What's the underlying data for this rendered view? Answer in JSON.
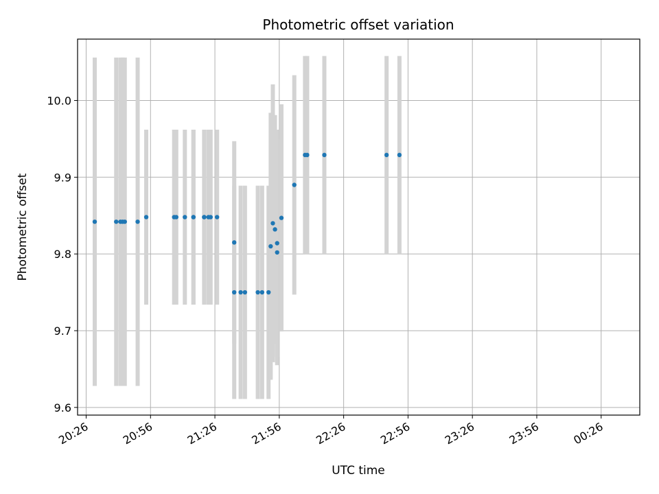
{
  "chart_data": {
    "type": "scatter",
    "title": "Photometric offset variation",
    "xlabel": "UTC time",
    "ylabel": "Photometric offset",
    "x_tick_labels": [
      "20:26",
      "20:56",
      "21:26",
      "21:56",
      "22:26",
      "22:56",
      "23:26",
      "23:56",
      "00:26"
    ],
    "y_tick_labels": [
      "9.6",
      "9.7",
      "9.8",
      "9.9",
      "10.0"
    ],
    "x_ticks": [
      "20:26",
      "20:56",
      "21:26",
      "21:56",
      "22:26",
      "22:56",
      "23:26",
      "23:56",
      "00:26"
    ],
    "y_ticks": [
      9.6,
      9.7,
      9.8,
      9.9,
      10.0
    ],
    "xlim": [
      "20:22",
      "00:44"
    ],
    "ylim": [
      9.59,
      10.08
    ],
    "grid": true,
    "colors": {
      "point": "#1f77b4",
      "errorbar": "#d3d3d3",
      "grid": "#b0b0b0",
      "axes": "#000000"
    },
    "points": [
      {
        "t": "20:30",
        "y": 9.842,
        "yerr": 0.214
      },
      {
        "t": "20:40",
        "y": 9.842,
        "yerr": 0.214
      },
      {
        "t": "20:42",
        "y": 9.842,
        "yerr": 0.214
      },
      {
        "t": "20:43",
        "y": 9.842,
        "yerr": 0.214
      },
      {
        "t": "20:44",
        "y": 9.842,
        "yerr": 0.214
      },
      {
        "t": "20:50",
        "y": 9.842,
        "yerr": 0.214
      },
      {
        "t": "20:54",
        "y": 9.848,
        "yerr": 0.114
      },
      {
        "t": "21:07",
        "y": 9.848,
        "yerr": 0.114
      },
      {
        "t": "21:08",
        "y": 9.848,
        "yerr": 0.114
      },
      {
        "t": "21:12",
        "y": 9.848,
        "yerr": 0.114
      },
      {
        "t": "21:16",
        "y": 9.848,
        "yerr": 0.114
      },
      {
        "t": "21:16",
        "y": 9.848,
        "yerr": 0.114
      },
      {
        "t": "21:21",
        "y": 9.848,
        "yerr": 0.114
      },
      {
        "t": "21:21",
        "y": 9.848,
        "yerr": 0.114
      },
      {
        "t": "21:23",
        "y": 9.848,
        "yerr": 0.114
      },
      {
        "t": "21:24",
        "y": 9.848,
        "yerr": 0.114
      },
      {
        "t": "21:27",
        "y": 9.848,
        "yerr": 0.114
      },
      {
        "t": "21:35",
        "y": 9.815,
        "yerr": 0.132
      },
      {
        "t": "21:35",
        "y": 9.75,
        "yerr": 0.139
      },
      {
        "t": "21:38",
        "y": 9.75,
        "yerr": 0.139
      },
      {
        "t": "21:40",
        "y": 9.75,
        "yerr": 0.139
      },
      {
        "t": "21:46",
        "y": 9.75,
        "yerr": 0.139
      },
      {
        "t": "21:48",
        "y": 9.75,
        "yerr": 0.139
      },
      {
        "t": "21:51",
        "y": 9.75,
        "yerr": 0.139
      },
      {
        "t": "21:52",
        "y": 9.81,
        "yerr": 0.174
      },
      {
        "t": "21:53",
        "y": 9.84,
        "yerr": 0.181
      },
      {
        "t": "21:54",
        "y": 9.832,
        "yerr": 0.149
      },
      {
        "t": "21:55",
        "y": 9.814,
        "yerr": 0.148
      },
      {
        "t": "21:55",
        "y": 9.802,
        "yerr": 0.147
      },
      {
        "t": "21:57",
        "y": 9.847,
        "yerr": 0.148
      },
      {
        "t": "22:03",
        "y": 9.89,
        "yerr": 0.143
      },
      {
        "t": "22:08",
        "y": 9.929,
        "yerr": 0.129
      },
      {
        "t": "22:09",
        "y": 9.929,
        "yerr": 0.129
      },
      {
        "t": "22:17",
        "y": 9.929,
        "yerr": 0.129
      },
      {
        "t": "22:46",
        "y": 9.929,
        "yerr": 0.129
      },
      {
        "t": "22:52",
        "y": 9.929,
        "yerr": 0.129
      }
    ]
  }
}
